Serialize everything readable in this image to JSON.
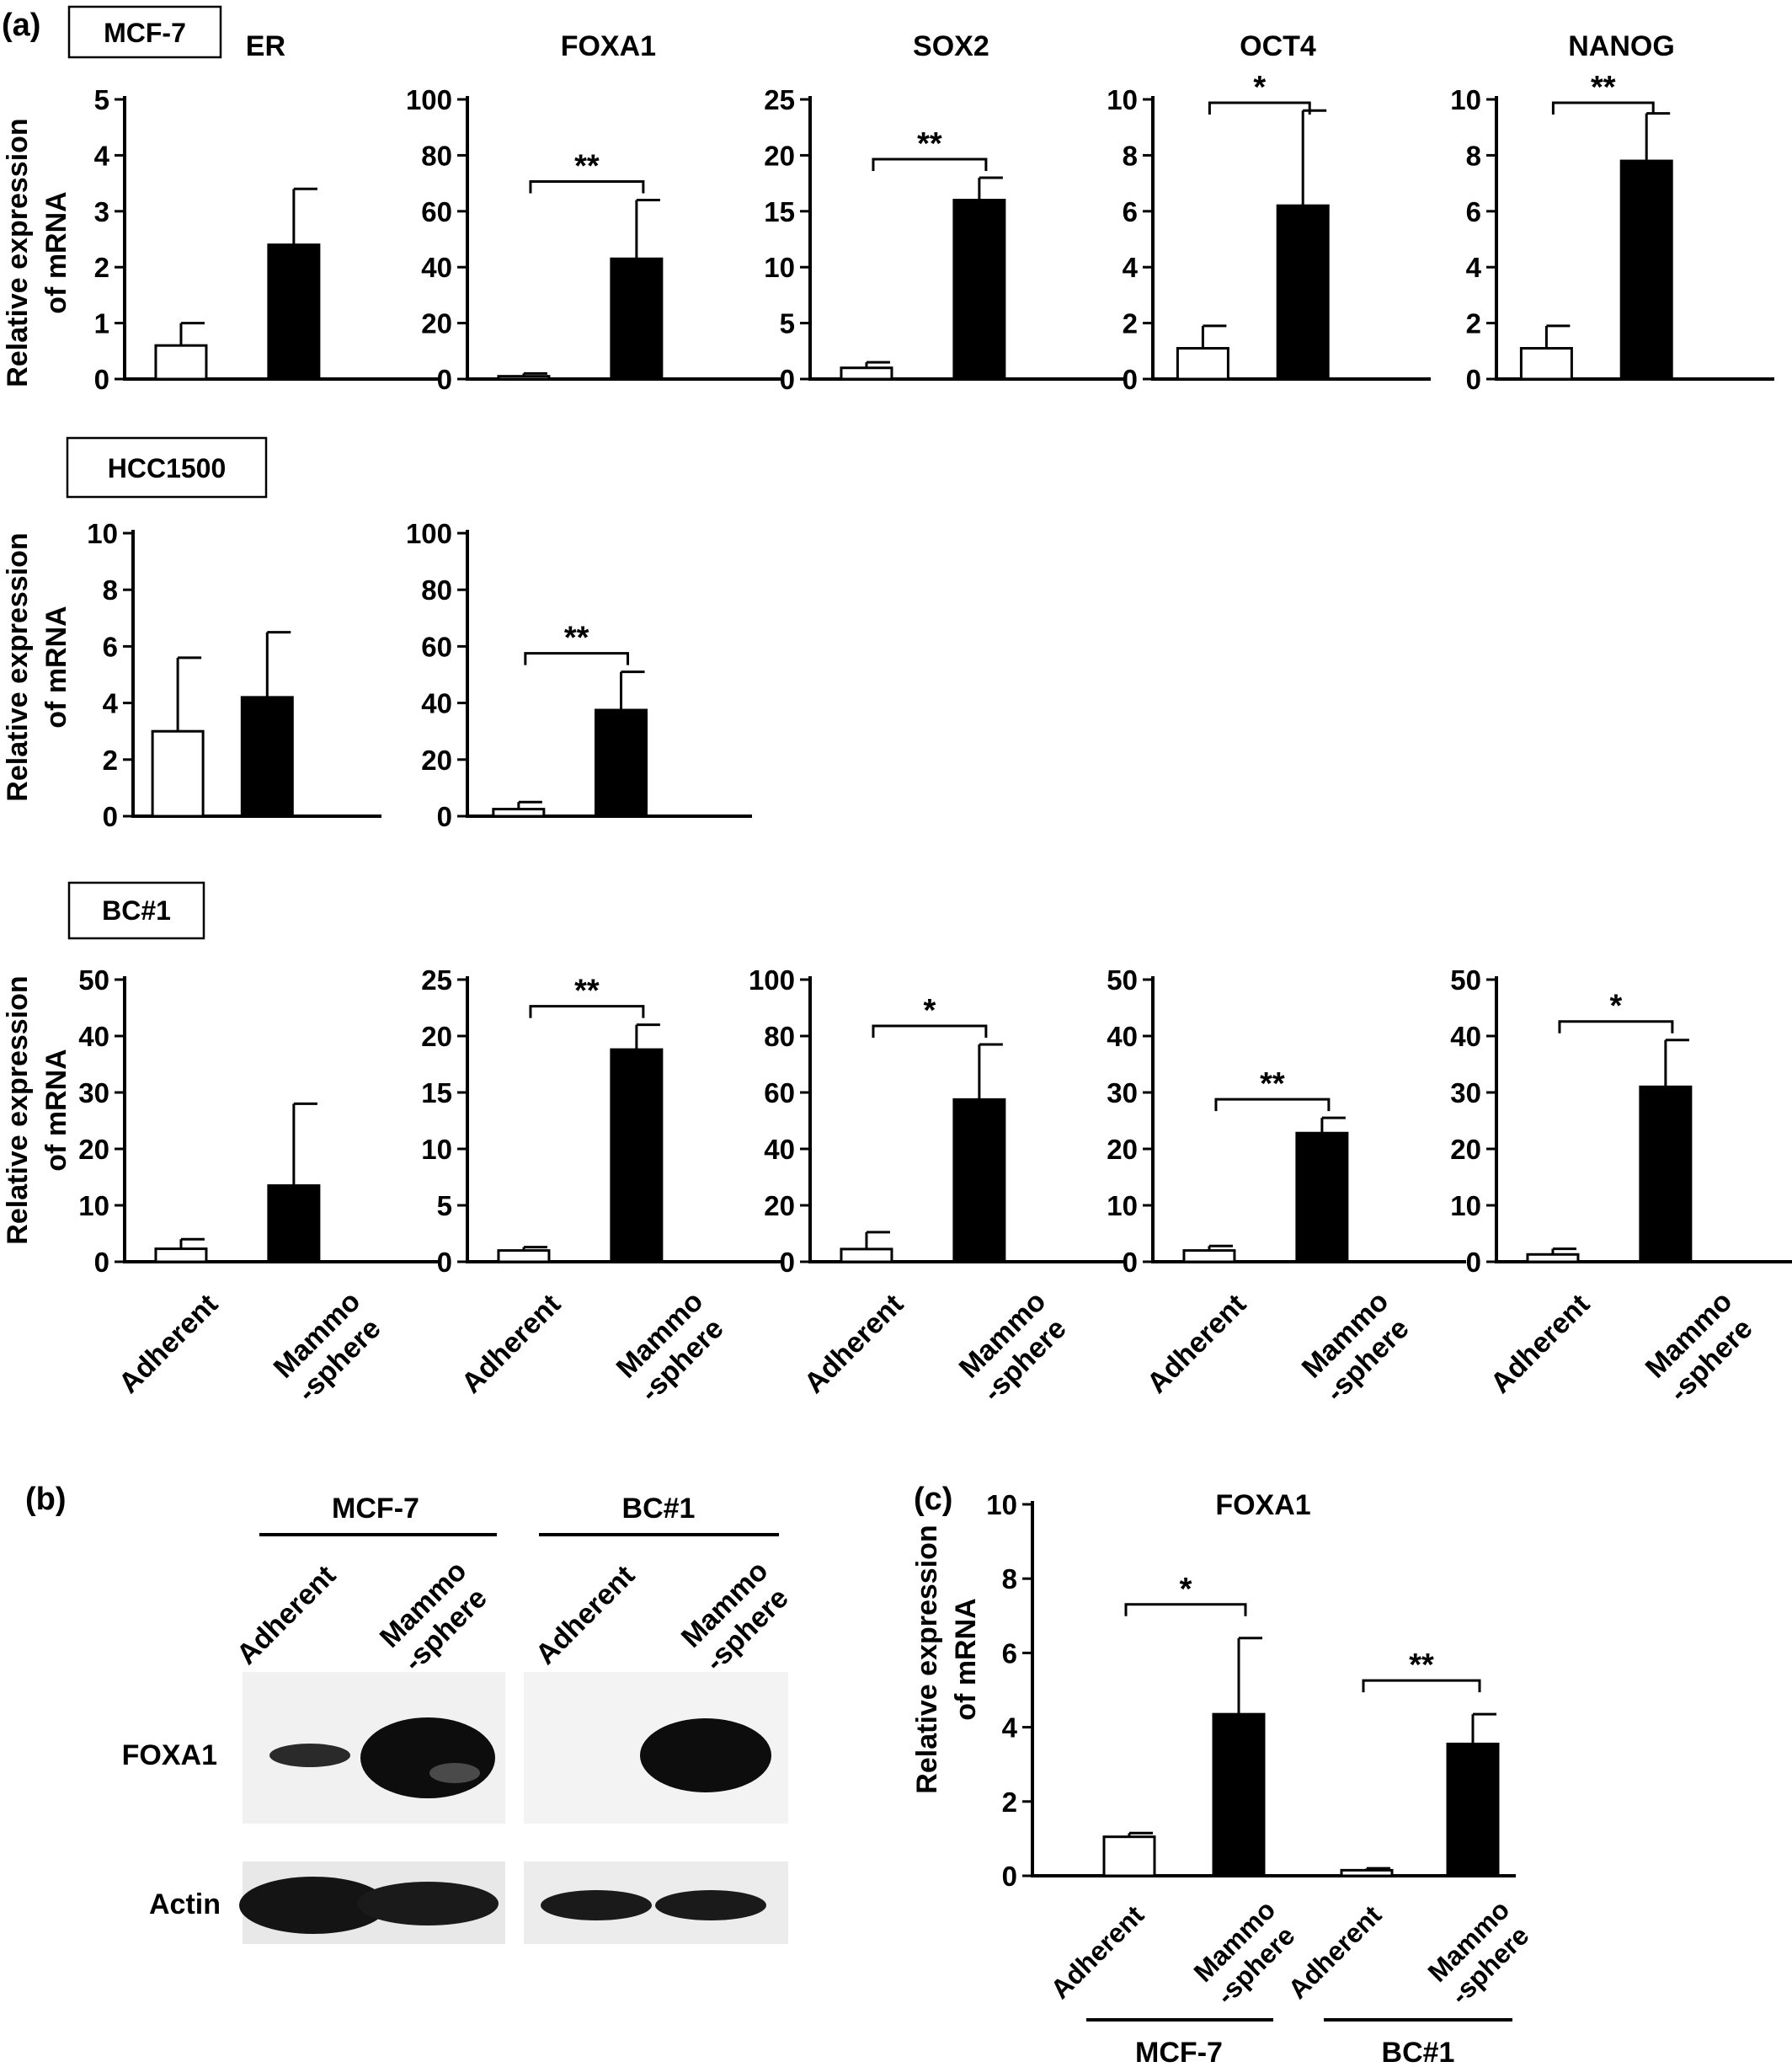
{
  "panel_labels": {
    "a": "(a)",
    "b": "(b)",
    "c": "(c)"
  },
  "cell_lines": {
    "mcf7": "MCF-7",
    "hcc1500": "HCC1500",
    "bc1": "BC#1"
  },
  "ylabel_line1": "Relative expression",
  "ylabel_line2": "of mRNA",
  "category_labels": {
    "adherent": "Adherent",
    "mammo_line1": "Mammo",
    "mammo_line2": "-sphere"
  },
  "significance": {
    "single": "*",
    "double": "**"
  },
  "colors": {
    "adherent_fill": "#ffffff",
    "mammosphere_fill": "#000000",
    "axis": "#000000"
  },
  "panel_b": {
    "group_labels": [
      "MCF-7",
      "BC#1"
    ],
    "lane_labels": [
      "Adherent",
      "Mammo -sphere",
      "Adherent",
      "Mammo -sphere"
    ],
    "blot_labels": {
      "foxa1": "FOXA1",
      "actin": "Actin"
    }
  },
  "chart_data": [
    {
      "type": "bar",
      "title": "ER",
      "cell_line": "MCF-7",
      "categories": [
        "Adherent",
        "Mammosphere"
      ],
      "values": [
        0.6,
        2.4
      ],
      "errors": [
        0.4,
        1.0
      ],
      "ylim": [
        0,
        5
      ],
      "yticks": [
        0,
        1,
        2,
        3,
        4,
        5
      ],
      "significance": ""
    },
    {
      "type": "bar",
      "title": "FOXA1",
      "cell_line": "MCF-7",
      "categories": [
        "Adherent",
        "Mammosphere"
      ],
      "values": [
        1,
        43
      ],
      "errors": [
        1,
        21
      ],
      "ylim": [
        0,
        100
      ],
      "yticks": [
        0,
        20,
        40,
        60,
        80,
        100
      ],
      "significance": "**"
    },
    {
      "type": "bar",
      "title": "SOX2",
      "cell_line": "MCF-7",
      "categories": [
        "Adherent",
        "Mammosphere"
      ],
      "values": [
        1.0,
        16.0
      ],
      "errors": [
        0.5,
        2.0
      ],
      "ylim": [
        0,
        25
      ],
      "yticks": [
        0,
        5,
        10,
        15,
        20,
        25
      ],
      "significance": "**"
    },
    {
      "type": "bar",
      "title": "OCT4",
      "cell_line": "MCF-7",
      "categories": [
        "Adherent",
        "Mammosphere"
      ],
      "values": [
        1.1,
        6.2
      ],
      "errors": [
        0.8,
        3.4
      ],
      "ylim": [
        0,
        10
      ],
      "yticks": [
        0,
        2,
        4,
        6,
        8,
        10
      ],
      "significance": "*"
    },
    {
      "type": "bar",
      "title": "NANOG",
      "cell_line": "MCF-7",
      "categories": [
        "Adherent",
        "Mammosphere"
      ],
      "values": [
        1.1,
        7.8
      ],
      "errors": [
        0.8,
        1.7
      ],
      "ylim": [
        0,
        10
      ],
      "yticks": [
        0,
        2,
        4,
        6,
        8,
        10
      ],
      "significance": "**"
    },
    {
      "type": "bar",
      "title": "",
      "cell_line": "HCC1500",
      "categories": [
        "Adherent",
        "Mammosphere"
      ],
      "values": [
        3.0,
        4.2
      ],
      "errors": [
        2.6,
        2.3
      ],
      "ylim": [
        0,
        10
      ],
      "yticks": [
        0,
        2,
        4,
        6,
        8,
        10
      ],
      "significance": ""
    },
    {
      "type": "bar",
      "title": "",
      "cell_line": "HCC1500",
      "categories": [
        "Adherent",
        "Mammosphere"
      ],
      "values": [
        2.5,
        37.5
      ],
      "errors": [
        2.5,
        13.5
      ],
      "ylim": [
        0,
        100
      ],
      "yticks": [
        0,
        20,
        40,
        60,
        80,
        100
      ],
      "significance": "**"
    },
    {
      "type": "bar",
      "title": "",
      "cell_line": "BC#1",
      "categories": [
        "Adherent",
        "Mammosphere"
      ],
      "values": [
        2.3,
        13.5
      ],
      "errors": [
        1.7,
        14.5
      ],
      "ylim": [
        0,
        50
      ],
      "yticks": [
        0,
        10,
        20,
        30,
        40,
        50
      ],
      "significance": ""
    },
    {
      "type": "bar",
      "title": "",
      "cell_line": "BC#1",
      "categories": [
        "Adherent",
        "Mammosphere"
      ],
      "values": [
        1.0,
        18.8
      ],
      "errors": [
        0.3,
        2.2
      ],
      "ylim": [
        0,
        25
      ],
      "yticks": [
        0,
        5,
        10,
        15,
        20,
        25
      ],
      "significance": "**"
    },
    {
      "type": "bar",
      "title": "",
      "cell_line": "BC#1",
      "categories": [
        "Adherent",
        "Mammosphere"
      ],
      "values": [
        4.5,
        57.5
      ],
      "errors": [
        6.0,
        19.5
      ],
      "ylim": [
        0,
        100
      ],
      "yticks": [
        0,
        20,
        40,
        60,
        80,
        100
      ],
      "significance": "*"
    },
    {
      "type": "bar",
      "title": "",
      "cell_line": "BC#1",
      "categories": [
        "Adherent",
        "Mammosphere"
      ],
      "values": [
        2.0,
        22.8
      ],
      "errors": [
        0.8,
        2.7
      ],
      "ylim": [
        0,
        50
      ],
      "yticks": [
        0,
        10,
        20,
        30,
        40,
        50
      ],
      "significance": "**"
    },
    {
      "type": "bar",
      "title": "",
      "cell_line": "BC#1",
      "categories": [
        "Adherent",
        "Mammosphere"
      ],
      "values": [
        1.3,
        31.0
      ],
      "errors": [
        1.0,
        8.3
      ],
      "ylim": [
        0,
        50
      ],
      "yticks": [
        0,
        10,
        20,
        30,
        40,
        50
      ],
      "significance": "*"
    },
    {
      "type": "bar",
      "title": "FOXA1",
      "categories": [
        "MCF-7 Adherent",
        "MCF-7 Mammosphere",
        "BC#1 Adherent",
        "BC#1 Mammosphere"
      ],
      "values": [
        1.05,
        4.35,
        0.15,
        3.55
      ],
      "errors": [
        0.1,
        2.05,
        0.05,
        0.8
      ],
      "ylim": [
        0,
        10
      ],
      "yticks": [
        0,
        2,
        4,
        6,
        8,
        10
      ],
      "significance": [
        "*",
        "**"
      ]
    }
  ]
}
